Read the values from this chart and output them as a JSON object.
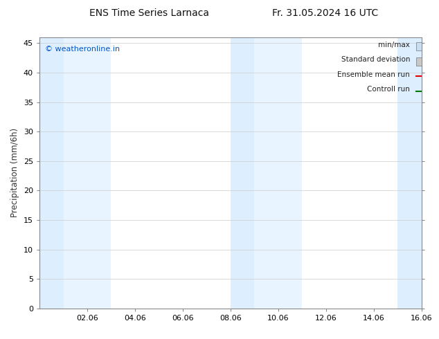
{
  "title_left": "ENS Time Series Larnaca",
  "title_right": "Fr. 31.05.2024 16 UTC",
  "ylabel": "Precipitation (mm/6h)",
  "watermark": "© weatheronline.in",
  "watermark_color": "#0055cc",
  "xlim_start": 0,
  "xlim_end": 16,
  "ylim": [
    0,
    46
  ],
  "yticks": [
    0,
    5,
    10,
    15,
    20,
    25,
    30,
    35,
    40,
    45
  ],
  "xtick_labels": [
    "02.06",
    "04.06",
    "06.06",
    "08.06",
    "10.06",
    "12.06",
    "14.06",
    "16.06"
  ],
  "xtick_positions": [
    2,
    4,
    6,
    8,
    10,
    12,
    14,
    16
  ],
  "shaded_bands": [
    [
      0.0,
      1.0
    ],
    [
      1.0,
      3.0
    ],
    [
      8.0,
      9.0
    ],
    [
      9.0,
      11.0
    ],
    [
      15.0,
      16.0
    ]
  ],
  "shaded_colors": [
    "#ddeeff",
    "#e8f4ff",
    "#ddeeff",
    "#e8f4ff",
    "#ddeeff"
  ],
  "background_color": "#ffffff",
  "plot_bg_color": "#ffffff",
  "grid_color": "#cccccc",
  "legend_items": [
    {
      "label": "min/max",
      "color": "#c8ddf0",
      "type": "fill"
    },
    {
      "label": "Standard deviation",
      "color": "#c8c8c8",
      "type": "fill"
    },
    {
      "label": "Ensemble mean run",
      "color": "#dd0000",
      "type": "line"
    },
    {
      "label": "Controll run",
      "color": "#007700",
      "type": "line"
    }
  ],
  "title_fontsize": 10,
  "axis_fontsize": 8.5,
  "tick_fontsize": 8,
  "legend_fontsize": 7.5
}
